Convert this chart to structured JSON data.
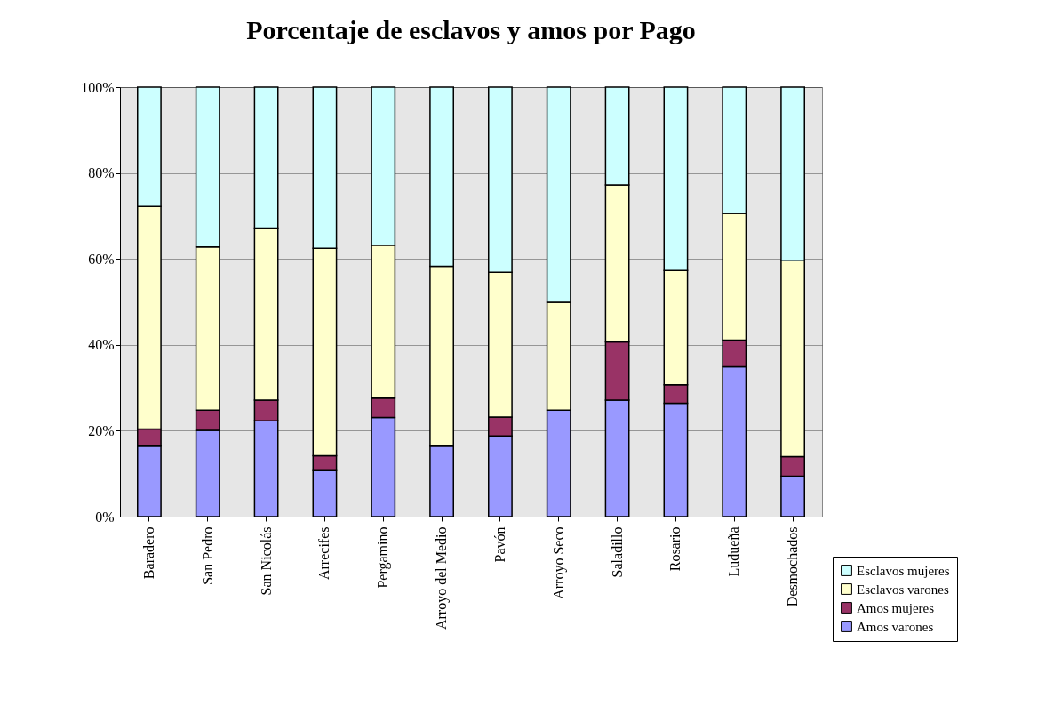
{
  "chart_data": {
    "type": "bar",
    "title": "Porcentaje de esclavos y amos por Pago",
    "stacked": true,
    "categories": [
      "Baradero",
      "San Pedro",
      "San Nicolás",
      "Arrecifes",
      "Pergamino",
      "Arroyo del Medio",
      "Pavón",
      "Arroyo Seco",
      "Saladillo",
      "Rosario",
      "Ludueña",
      "Desmochados"
    ],
    "series": [
      {
        "name": "Amos varones",
        "color": "#9999ff",
        "values": [
          16.4,
          20.1,
          22.3,
          10.7,
          23.1,
          16.4,
          18.8,
          24.8,
          27.1,
          26.4,
          34.9,
          9.4
        ]
      },
      {
        "name": "Amos mujeres",
        "color": "#993366",
        "values": [
          4.0,
          4.7,
          4.8,
          3.5,
          4.5,
          null,
          4.4,
          null,
          13.6,
          4.3,
          6.2,
          4.6
        ]
      },
      {
        "name": "Esclavos varones",
        "color": "#ffffcc",
        "values": [
          51.8,
          38.0,
          40.1,
          48.3,
          35.6,
          41.9,
          33.7,
          25.1,
          36.5,
          26.6,
          29.5,
          45.6
        ]
      },
      {
        "name": "Esclavos mujeres",
        "color": "#ccffff",
        "values": [
          27.8,
          37.2,
          32.8,
          37.5,
          36.8,
          41.7,
          43.1,
          50.1,
          22.8,
          42.7,
          29.4,
          40.4
        ]
      }
    ],
    "ylim": [
      0,
      100
    ],
    "yticks": [
      {
        "value": 0,
        "label": "0%"
      },
      {
        "value": 20,
        "label": "20%"
      },
      {
        "value": 40,
        "label": "40%"
      },
      {
        "value": 60,
        "label": "60%"
      },
      {
        "value": 80,
        "label": "80%"
      },
      {
        "value": 100,
        "label": "100%"
      }
    ],
    "grid": "y",
    "legend": "bottom right"
  }
}
